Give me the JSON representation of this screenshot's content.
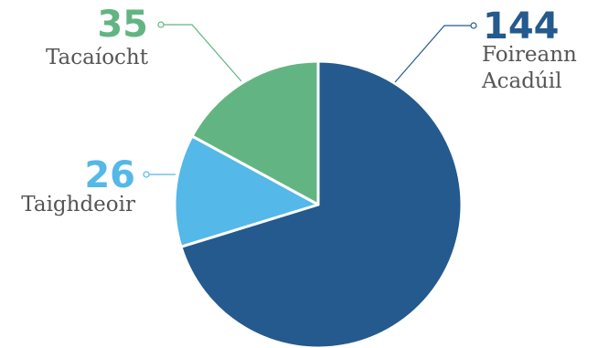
{
  "chart_data": {
    "type": "pie",
    "title": "",
    "slices": [
      {
        "label": "Foireann Acadúil",
        "label_lines": [
          "Foireann",
          "Acadúil"
        ],
        "value": 144,
        "color": "#245a8d"
      },
      {
        "label": "Taighdeoir",
        "label_lines": [
          "Taighdeoir"
        ],
        "value": 26,
        "color": "#54b8e8"
      },
      {
        "label": "Tacaíocht",
        "label_lines": [
          "Tacaíocht"
        ],
        "value": 35,
        "color": "#62b582"
      }
    ],
    "start_angle_deg": 0,
    "direction": "clockwise",
    "data_labels": "outside-with-leader-lines"
  }
}
